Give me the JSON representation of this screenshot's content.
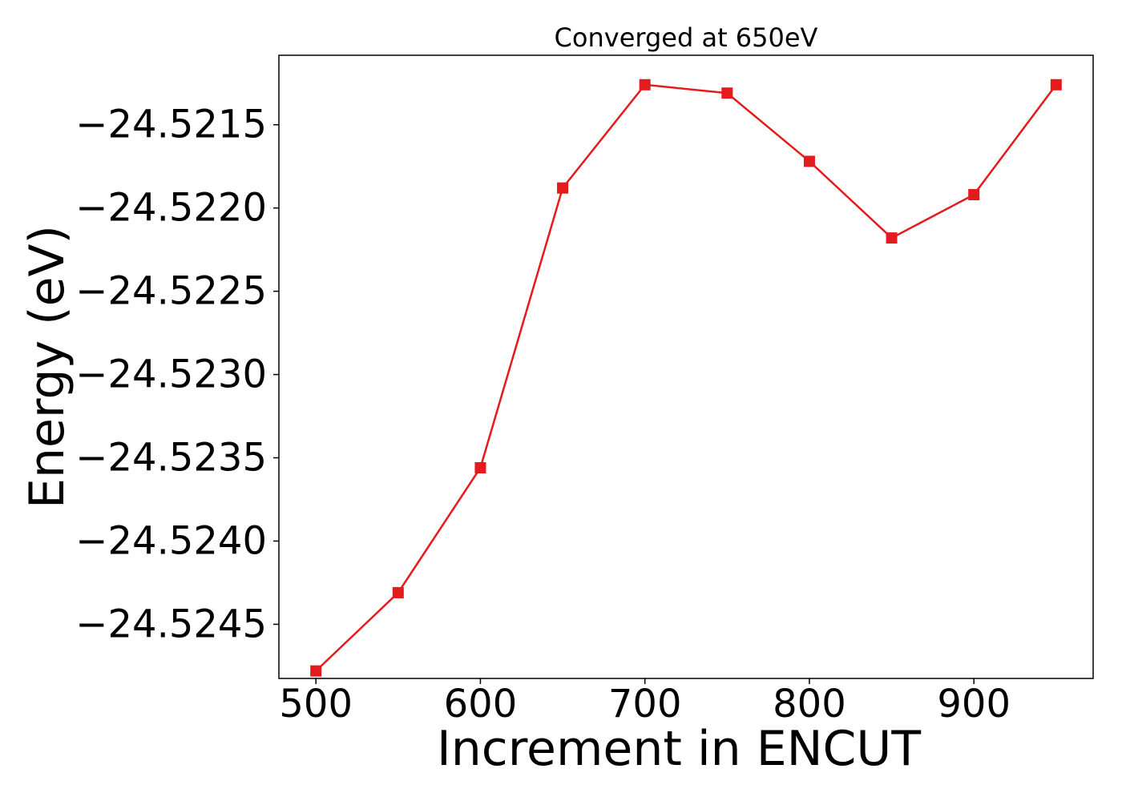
{
  "chart_data": {
    "type": "line",
    "title": "Converged at 650eV",
    "xlabel": "Increment in ENCUT",
    "ylabel": "Energy (eV)",
    "x": [
      500,
      550,
      600,
      650,
      700,
      750,
      800,
      850,
      900,
      950
    ],
    "series": [
      {
        "values": [
          -24.52478,
          -24.52431,
          -24.52356,
          -24.52188,
          -24.52126,
          -24.52131,
          -24.52172,
          -24.52218,
          -24.52192,
          -24.52126
        ],
        "color": "#e41a1c",
        "marker": "square"
      }
    ],
    "xticks": [
      500,
      600,
      700,
      800,
      900
    ],
    "xtick_labels": [
      "500",
      "600",
      "700",
      "800",
      "900"
    ],
    "yticks": [
      -24.5245,
      -24.524,
      -24.5235,
      -24.523,
      -24.5225,
      -24.522,
      -24.5215
    ],
    "ytick_labels": [
      "−24.5245",
      "−24.5240",
      "−24.5235",
      "−24.5230",
      "−24.5225",
      "−24.5220",
      "−24.5215"
    ],
    "xlim": [
      477.5,
      972.5
    ],
    "ylim": [
      -24.524825,
      -24.521083
    ],
    "grid": false,
    "legend": false
  }
}
